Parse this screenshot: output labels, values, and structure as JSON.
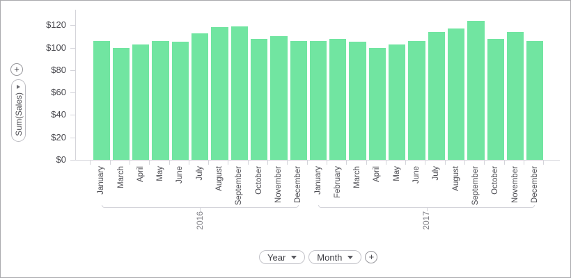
{
  "chart_data": {
    "type": "bar",
    "title": "",
    "value_axis_label": "Sum(Sales)",
    "bar_color": "#71e5a1",
    "axis_color": "#d4d4da",
    "grid": false,
    "legend": false,
    "ylim": [
      0,
      130
    ],
    "y_ticks": [
      {
        "label": "$0",
        "value": 0
      },
      {
        "label": "$20",
        "value": 20
      },
      {
        "label": "$40",
        "value": 40
      },
      {
        "label": "$60",
        "value": 60
      },
      {
        "label": "$80",
        "value": 80
      },
      {
        "label": "$100",
        "value": 100
      },
      {
        "label": "$120",
        "value": 120
      }
    ],
    "groups": [
      {
        "year": "2016",
        "months": [
          "January",
          "March",
          "April",
          "May",
          "June",
          "July",
          "August",
          "September",
          "October",
          "November",
          "December"
        ],
        "values": [
          106,
          100,
          103,
          106,
          105,
          113,
          118,
          119,
          108,
          110,
          106
        ]
      },
      {
        "year": "2017",
        "months": [
          "January",
          "February",
          "March",
          "April",
          "May",
          "June",
          "July",
          "August",
          "September",
          "October",
          "November",
          "December"
        ],
        "values": [
          106,
          108,
          105,
          100,
          103,
          106,
          114,
          117,
          124,
          108,
          114,
          106
        ]
      }
    ]
  },
  "left_controls": {
    "add_button_label": "+",
    "measure_pill": {
      "label": "Sum(Sales)",
      "collapse_icon": "chevron-right"
    }
  },
  "bottom_controls": {
    "fields": [
      {
        "label": "Year",
        "icon": "chevron-down"
      },
      {
        "label": "Month",
        "icon": "chevron-down"
      }
    ],
    "add_button_label": "+"
  }
}
